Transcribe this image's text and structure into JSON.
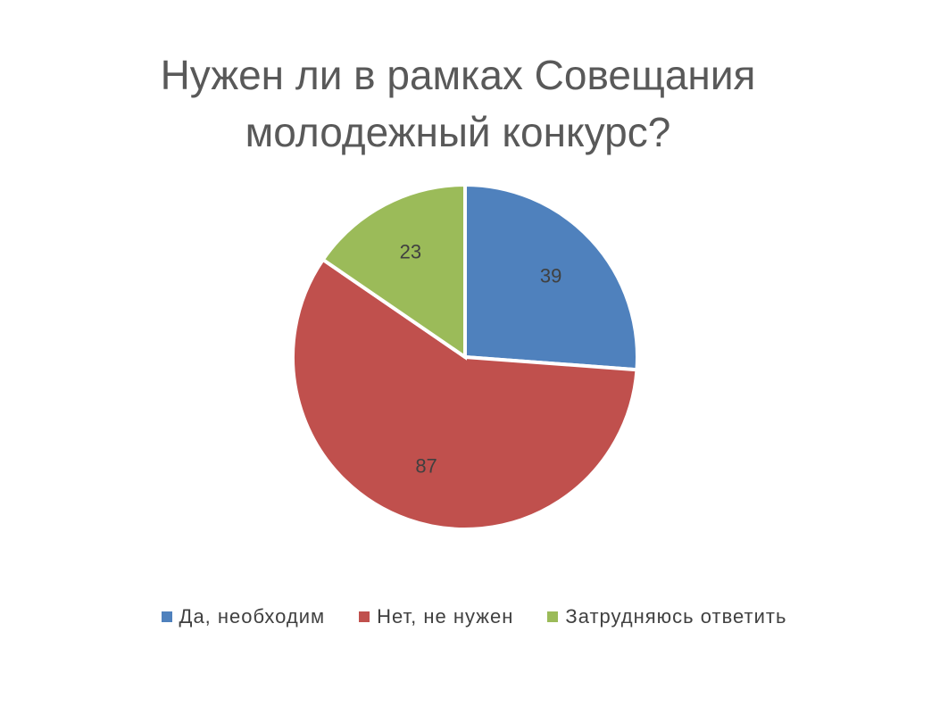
{
  "chart_data": {
    "type": "pie",
    "title": "Нужен ли в рамках Совещания молодежный конкурс?",
    "categories": [
      "Да, необходим",
      "Нет, не нужен",
      "Затрудняюсь ответить"
    ],
    "values": [
      39,
      87,
      23
    ],
    "colors": [
      "#4f81bd",
      "#c0504d",
      "#9bbb59"
    ],
    "legend": "bottom"
  }
}
